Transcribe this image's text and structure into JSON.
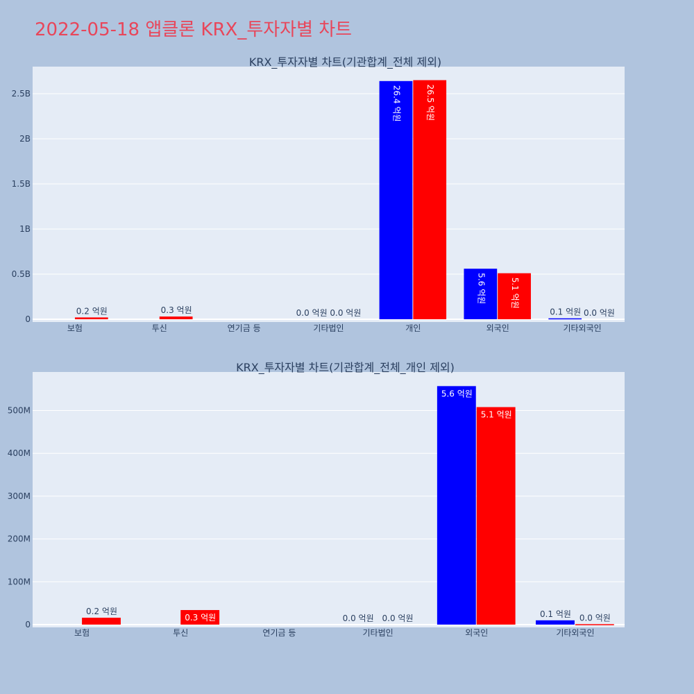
{
  "page": {
    "title": "2022-05-18 앱클론 KRX_투자자별 차트"
  },
  "colors": {
    "background": "#b0c4de",
    "plot_background": "#e5ecf6",
    "series_1": "#0000ff",
    "series_2": "#ff0000",
    "title": "#e8465a",
    "text": "#2a3f5f"
  },
  "chart_data": [
    {
      "type": "bar",
      "title": "KRX_투자자별 차트(기관합계_전체 제외)",
      "categories": [
        "보험",
        "투신",
        "연기금 등",
        "기타법인",
        "개인",
        "외국인",
        "기타외국인"
      ],
      "series": [
        {
          "values": [
            0,
            0,
            0,
            0,
            2640000000,
            560000000,
            10000000
          ],
          "labels": [
            "",
            "",
            "",
            "0.0 억원",
            "26.4 억원",
            "5.6 억원",
            "0.1 억원"
          ]
        },
        {
          "values": [
            20000000,
            30000000,
            0,
            0,
            2650000000,
            510000000,
            0
          ],
          "labels": [
            "0.2 억원",
            "0.3 억원",
            "",
            "0.0 억원",
            "26.5 억원",
            "5.1 억원",
            "0.0 억원"
          ]
        }
      ],
      "yticks": [
        "0",
        "0.5B",
        "1B",
        "1.5B",
        "2B",
        "2.5B"
      ],
      "ylim": [
        0,
        2800000000
      ],
      "grid": true,
      "label_rotation": "rotated 90° inside the tall bars"
    },
    {
      "type": "bar",
      "title": "KRX_투자자별 차트(기관합계_전체_개인 제외)",
      "categories": [
        "보험",
        "투신",
        "연기금 등",
        "기타법인",
        "외국인",
        "기타외국인"
      ],
      "series": [
        {
          "values": [
            0,
            0,
            0,
            0,
            557000000,
            10000000
          ],
          "labels": [
            "",
            "",
            "",
            "0.0 억원",
            "5.6 억원",
            "0.1 억원"
          ]
        },
        {
          "values": [
            16000000,
            34000000,
            0,
            0,
            508000000,
            1000000
          ],
          "labels": [
            "0.2 억원",
            "0.3 억원",
            "",
            "0.0 억원",
            "5.1 억원",
            "0.0 억원"
          ]
        }
      ],
      "yticks": [
        "0",
        "100M",
        "200M",
        "300M",
        "400M",
        "500M"
      ],
      "ylim": [
        0,
        590000000
      ],
      "grid": true
    }
  ]
}
